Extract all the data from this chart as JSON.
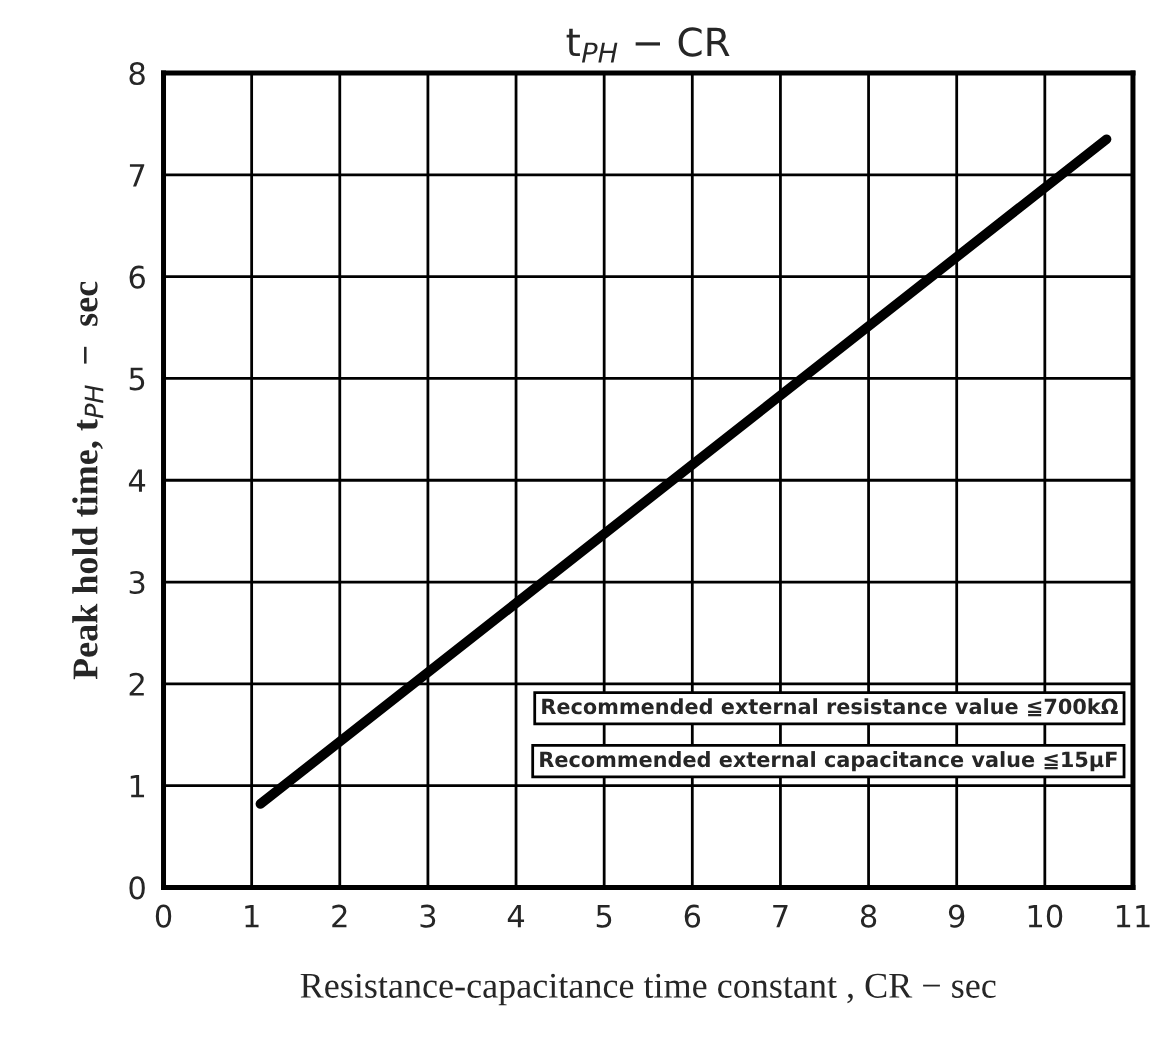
{
  "chart_data": {
    "type": "line",
    "title": "t$_{PH}$ − CR",
    "xlabel": "Resistance-capacitance time constant , CR − sec",
    "ylabel": "Peak hold time, t$_{PH}$  −  sec",
    "x": [
      1.1,
      10.7
    ],
    "series": [
      {
        "color": "#000000",
        "values": [
          0.82,
          7.35
        ]
      }
    ],
    "xlim": [
      0,
      11
    ],
    "xticks": [
      0,
      1,
      2,
      3,
      4,
      5,
      6,
      7,
      8,
      9,
      10,
      11
    ],
    "ylim": [
      0,
      8
    ],
    "yticks": [
      0,
      1,
      2,
      3,
      4,
      5,
      6,
      7,
      8
    ],
    "grid": true,
    "line_style": "solid",
    "annotations": [
      "Recommended external resistance value ≦700kΩ",
      "Recommended external capacitance value ≦15μF"
    ]
  }
}
